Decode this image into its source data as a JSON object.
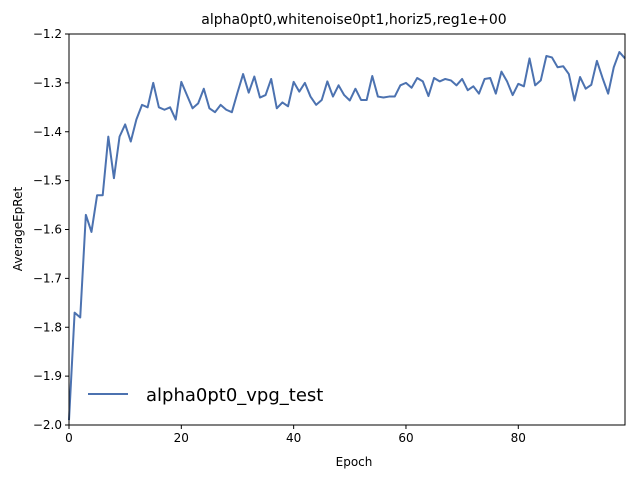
{
  "chart_data": {
    "type": "line",
    "title": "alpha0pt0,whitenoise0pt1,horiz5,reg1e+00",
    "xlabel": "Epoch",
    "ylabel": "AverageEpRet",
    "xlim": [
      0,
      99
    ],
    "ylim": [
      -2.0,
      -1.2
    ],
    "xticks": [
      0,
      20,
      40,
      60,
      80
    ],
    "xtick_labels": [
      "0",
      "20",
      "40",
      "60",
      "80"
    ],
    "yticks": [
      -2.0,
      -1.9,
      -1.8,
      -1.7,
      -1.6,
      -1.5,
      -1.4,
      -1.3,
      -1.2
    ],
    "ytick_labels": [
      "−2.0",
      "−1.9",
      "−1.8",
      "−1.7",
      "−1.6",
      "−1.5",
      "−1.4",
      "−1.3",
      "−1.2"
    ],
    "grid": false,
    "legend_position": "lower-left",
    "series": [
      {
        "name": "alpha0pt0_vpg_test",
        "color": "#4c72b0",
        "x": [
          0,
          1,
          2,
          3,
          4,
          5,
          6,
          7,
          8,
          9,
          10,
          11,
          12,
          13,
          14,
          15,
          16,
          17,
          18,
          19,
          20,
          21,
          22,
          23,
          24,
          25,
          26,
          27,
          28,
          29,
          30,
          31,
          32,
          33,
          34,
          35,
          36,
          37,
          38,
          39,
          40,
          41,
          42,
          43,
          44,
          45,
          46,
          47,
          48,
          49,
          50,
          51,
          52,
          53,
          54,
          55,
          56,
          57,
          58,
          59,
          60,
          61,
          62,
          63,
          64,
          65,
          66,
          67,
          68,
          69,
          70,
          71,
          72,
          73,
          74,
          75,
          76,
          77,
          78,
          79,
          80,
          81,
          82,
          83,
          84,
          85,
          86,
          87,
          88,
          89,
          90,
          91,
          92,
          93,
          94,
          95,
          96,
          97,
          98,
          99
        ],
        "y": [
          -1.99,
          -1.77,
          -1.78,
          -1.57,
          -1.605,
          -1.53,
          -1.53,
          -1.41,
          -1.495,
          -1.41,
          -1.385,
          -1.42,
          -1.375,
          -1.345,
          -1.35,
          -1.3,
          -1.35,
          -1.355,
          -1.35,
          -1.375,
          -1.298,
          -1.325,
          -1.352,
          -1.342,
          -1.312,
          -1.352,
          -1.36,
          -1.345,
          -1.355,
          -1.36,
          -1.32,
          -1.282,
          -1.32,
          -1.287,
          -1.33,
          -1.325,
          -1.292,
          -1.352,
          -1.34,
          -1.348,
          -1.298,
          -1.318,
          -1.3,
          -1.328,
          -1.345,
          -1.335,
          -1.297,
          -1.328,
          -1.305,
          -1.325,
          -1.336,
          -1.312,
          -1.335,
          -1.335,
          -1.286,
          -1.328,
          -1.33,
          -1.328,
          -1.328,
          -1.305,
          -1.3,
          -1.31,
          -1.29,
          -1.297,
          -1.327,
          -1.29,
          -1.297,
          -1.292,
          -1.295,
          -1.305,
          -1.292,
          -1.315,
          -1.307,
          -1.322,
          -1.292,
          -1.29,
          -1.322,
          -1.277,
          -1.297,
          -1.325,
          -1.302,
          -1.307,
          -1.25,
          -1.305,
          -1.295,
          -1.245,
          -1.248,
          -1.268,
          -1.266,
          -1.282,
          -1.336,
          -1.288,
          -1.312,
          -1.304,
          -1.255,
          -1.29,
          -1.322,
          -1.268,
          -1.237,
          -1.25
        ]
      }
    ]
  }
}
